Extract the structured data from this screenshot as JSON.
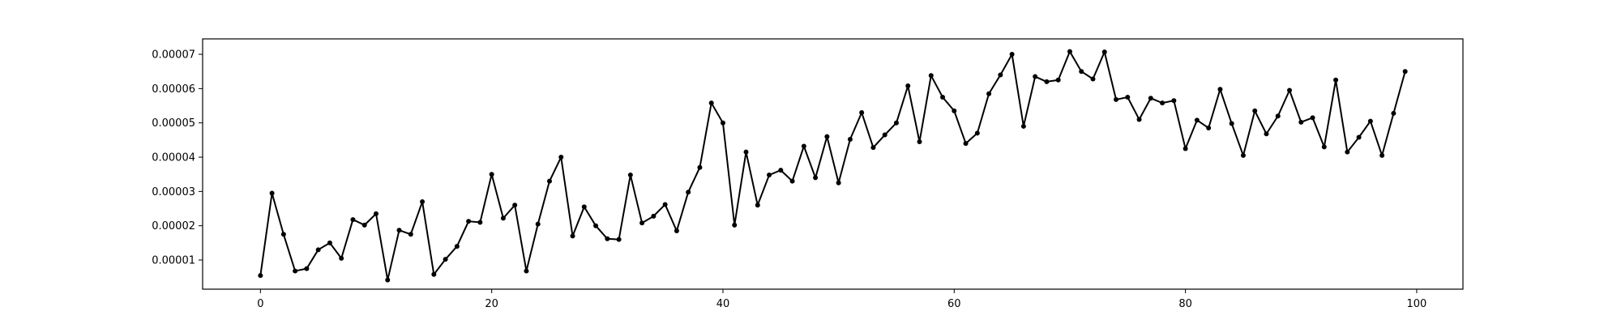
{
  "chart_data": {
    "type": "line",
    "title": "",
    "xlabel": "",
    "ylabel": "",
    "xlim": [
      -5,
      104
    ],
    "ylim": [
      1.5e-06,
      7.45e-05
    ],
    "grid": false,
    "x_ticks": [
      0,
      20,
      40,
      60,
      80,
      100
    ],
    "x_tick_labels": [
      "0",
      "20",
      "40",
      "60",
      "80",
      "100"
    ],
    "y_ticks": [
      1e-05,
      2e-05,
      3e-05,
      4e-05,
      5e-05,
      6e-05,
      7e-05
    ],
    "y_tick_labels": [
      "0.00001",
      "0.00002",
      "0.00003",
      "0.00004",
      "0.00005",
      "0.00006",
      "0.00007"
    ],
    "series": [
      {
        "color": "#000000",
        "marker": "point",
        "x": [
          0,
          1,
          2,
          3,
          4,
          5,
          6,
          7,
          8,
          9,
          10,
          11,
          12,
          13,
          14,
          15,
          16,
          17,
          18,
          19,
          20,
          21,
          22,
          23,
          24,
          25,
          26,
          27,
          28,
          29,
          30,
          31,
          32,
          33,
          34,
          35,
          36,
          37,
          38,
          39,
          40,
          41,
          42,
          43,
          44,
          45,
          46,
          47,
          48,
          49,
          50,
          51,
          52,
          53,
          54,
          55,
          56,
          57,
          58,
          59,
          60,
          61,
          62,
          63,
          64,
          65,
          66,
          67,
          68,
          69,
          70,
          71,
          72,
          73,
          74,
          75,
          76,
          77,
          78,
          79,
          80,
          81,
          82,
          83,
          84,
          85,
          86,
          87,
          88,
          89,
          90,
          91,
          92,
          93,
          94,
          95,
          96,
          97,
          98,
          99
        ],
        "values": [
          5.5e-06,
          2.95e-05,
          1.75e-05,
          6.8e-06,
          7.5e-06,
          1.3e-05,
          1.5e-05,
          1.05e-05,
          2.18e-05,
          2.02e-05,
          2.35e-05,
          4.2e-06,
          1.87e-05,
          1.75e-05,
          2.7e-05,
          5.8e-06,
          1.02e-05,
          1.4e-05,
          2.13e-05,
          2.1e-05,
          3.5e-05,
          2.22e-05,
          2.6e-05,
          6.8e-06,
          2.05e-05,
          3.3e-05,
          4e-05,
          1.7e-05,
          2.55e-05,
          2e-05,
          1.62e-05,
          1.6e-05,
          3.48e-05,
          2.08e-05,
          2.28e-05,
          2.62e-05,
          1.85e-05,
          2.98e-05,
          3.7e-05,
          5.58e-05,
          5e-05,
          2.02e-05,
          4.15e-05,
          2.6e-05,
          3.48e-05,
          3.62e-05,
          3.3e-05,
          4.32e-05,
          3.4e-05,
          4.6e-05,
          3.25e-05,
          4.52e-05,
          5.3e-05,
          4.28e-05,
          4.65e-05,
          5e-05,
          6.08e-05,
          4.45e-05,
          6.38e-05,
          5.75e-05,
          5.35e-05,
          4.4e-05,
          4.7e-05,
          5.85e-05,
          6.4e-05,
          7e-05,
          4.9e-05,
          6.35e-05,
          6.2e-05,
          6.25e-05,
          7.08e-05,
          6.5e-05,
          6.28e-05,
          7.07e-05,
          5.68e-05,
          5.75e-05,
          5.1e-05,
          5.72e-05,
          5.58e-05,
          5.65e-05,
          4.25e-05,
          5.08e-05,
          4.85e-05,
          5.98e-05,
          4.98e-05,
          4.05e-05,
          5.35e-05,
          4.68e-05,
          5.2e-05,
          5.95e-05,
          5.02e-05,
          5.15e-05,
          4.3e-05,
          6.25e-05,
          4.15e-05,
          4.58e-05,
          5.05e-05,
          4.05e-05,
          5.28e-05,
          6.5e-05
        ]
      }
    ]
  }
}
